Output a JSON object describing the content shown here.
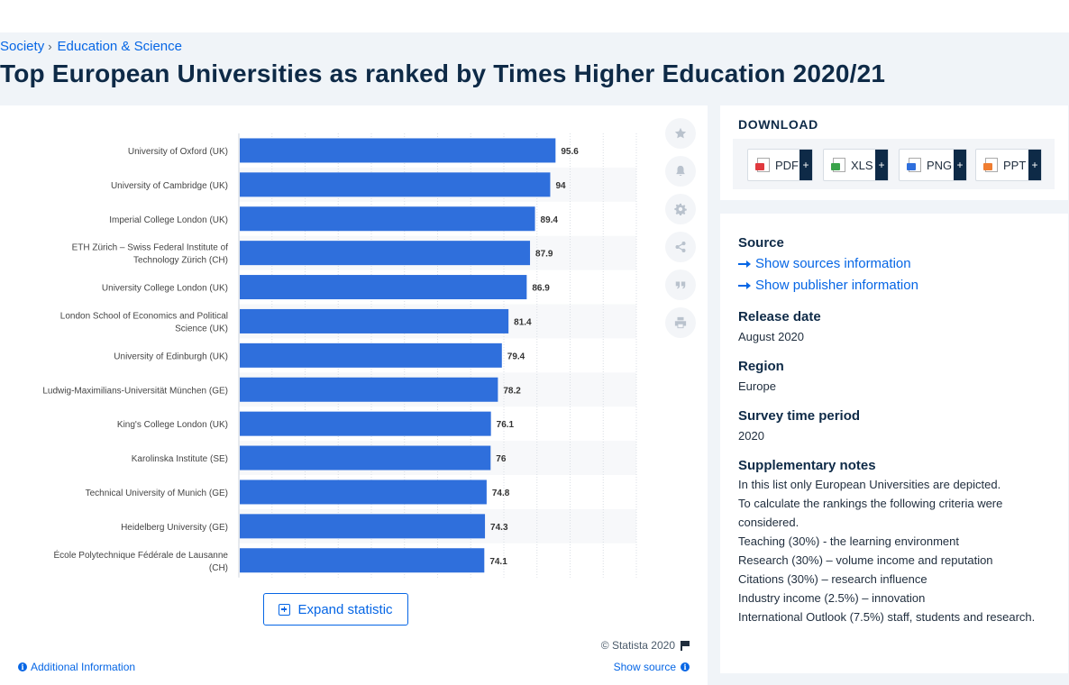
{
  "breadcrumb": [
    "Society",
    "Education & Science"
  ],
  "page_title": "Top European Universities as ranked by Times Higher Education 2020/21",
  "chart_data": {
    "type": "bar",
    "orientation": "horizontal",
    "categories": [
      "University of Oxford (UK)",
      "University of Cambridge (UK)",
      "Imperial College London (UK)",
      "ETH Zürich – Swiss Federal Institute of Technology Zürich (CH)",
      "University College London (UK)",
      "London School of Economics and Political Science (UK)",
      "University of Edinburgh (UK)",
      "Ludwig-Maximilians-Universität München (GE)",
      "King's College London (UK)",
      "Karolinska Institute (SE)",
      "Technical University of Munich (GE)",
      "Heidelberg University (GE)",
      "École Polytechnique Fédérale de Lausanne (CH)"
    ],
    "values": [
      95.6,
      94,
      89.4,
      87.9,
      86.9,
      81.4,
      79.4,
      78.2,
      76.1,
      76,
      74.8,
      74.3,
      74.1
    ],
    "value_labels": [
      "95.6",
      "94",
      "89.4",
      "87.9",
      "86.9",
      "81.4",
      "79.4",
      "78.2",
      "76.1",
      "76",
      "74.8",
      "74.3",
      "74.1"
    ],
    "xlim": [
      0,
      120
    ],
    "bar_color": "#2f6fdc",
    "grid": true,
    "title": "",
    "xlabel": "",
    "ylabel": ""
  },
  "toolbar": {
    "expand_label": "Expand statistic",
    "copyright": "© Statista 2020",
    "additional_info": "Additional Information",
    "show_source": "Show source"
  },
  "tools": [
    "star-icon",
    "bell-icon",
    "gear-icon",
    "share-icon",
    "quote-icon",
    "print-icon"
  ],
  "download": {
    "title": "DOWNLOAD",
    "formats": [
      {
        "label": "PDF",
        "color": "#e0393e"
      },
      {
        "label": "XLS",
        "color": "#3aa34a"
      },
      {
        "label": "PNG",
        "color": "#2f6fdc"
      },
      {
        "label": "PPT",
        "color": "#ef7d31"
      }
    ],
    "plus": "+"
  },
  "info": {
    "source_heading": "Source",
    "show_sources": "Show sources information",
    "show_publisher": "Show publisher information",
    "release_heading": "Release date",
    "release_value": "August 2020",
    "region_heading": "Region",
    "region_value": "Europe",
    "survey_heading": "Survey time period",
    "survey_value": "2020",
    "notes_heading": "Supplementary notes",
    "notes": [
      "In this list only European Universities are depicted.",
      "To calculate the rankings the following criteria were considered.",
      "Teaching (30%) - the learning environment",
      "Research (30%) – volume income and reputation",
      "Citations (30%) – research influence",
      "Industry income (2.5%) – innovation",
      "International Outlook (7.5%) staff, students and research."
    ]
  }
}
